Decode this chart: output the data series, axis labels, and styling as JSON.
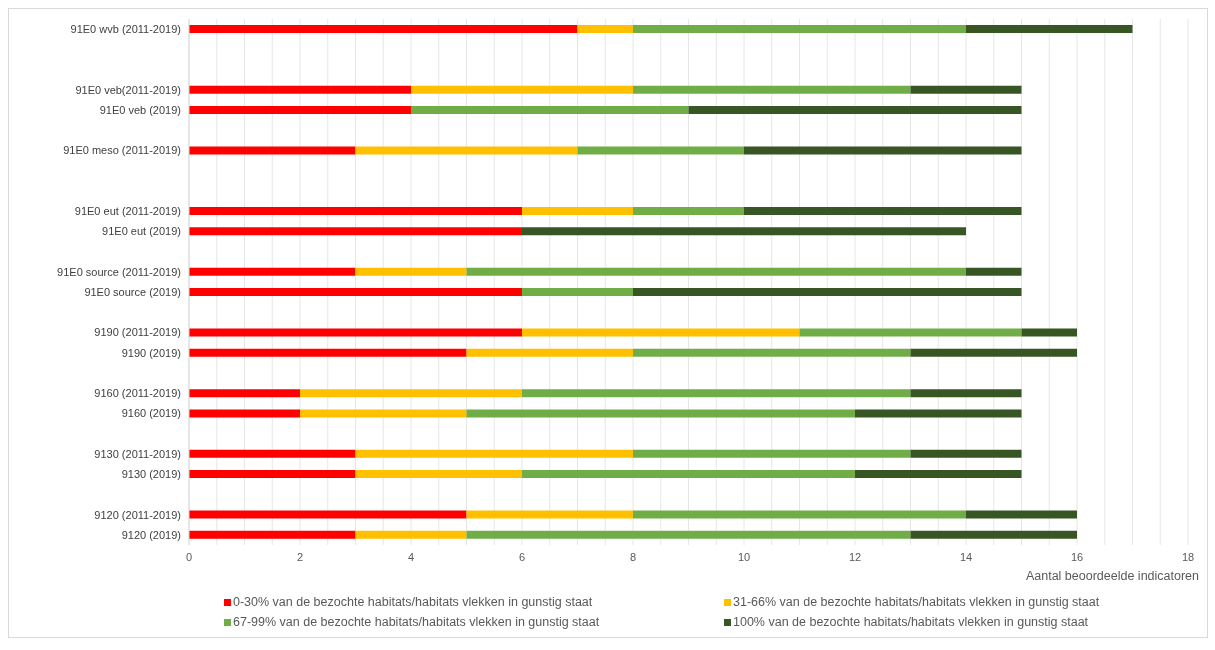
{
  "chart_data": {
    "type": "bar",
    "orientation": "horizontal",
    "stacked": true,
    "xlabel": "Aantal beoordeelde indicatoren",
    "categories": [
      "91E0 wvb (2011-2019)",
      null,
      null,
      "91E0 veb(2011-2019)",
      "91E0 veb (2019)",
      null,
      "91E0 meso (2011-2019)",
      null,
      null,
      "91E0 eut (2011-2019)",
      "91E0 eut (2019)",
      null,
      "91E0 source (2011-2019)",
      "91E0 source (2019)",
      null,
      "9190 (2011-2019)",
      "9190 (2019)",
      null,
      "9160 (2011-2019)",
      "9160 (2019)",
      null,
      "9130 (2011-2019)",
      "9130 (2019)",
      null,
      "9120 (2011-2019)",
      "9120 (2019)"
    ],
    "series": [
      {
        "name": "0-30% van de bezochte habitats/habitats vlekken in gunstig staat",
        "color": "#ff0000",
        "values": [
          7,
          null,
          null,
          4,
          4,
          null,
          3,
          null,
          null,
          6,
          6,
          null,
          3,
          6,
          null,
          6,
          5,
          null,
          2,
          2,
          null,
          3,
          3,
          null,
          5,
          3
        ]
      },
      {
        "name": "31-66% van de bezochte habitats/habitats vlekken in gunstig staat",
        "color": "#ffc000",
        "values": [
          1,
          null,
          null,
          4,
          0,
          null,
          4,
          null,
          null,
          2,
          0,
          null,
          2,
          0,
          null,
          5,
          3,
          null,
          4,
          3,
          null,
          5,
          3,
          null,
          3,
          2
        ]
      },
      {
        "name": "67-99% van de bezochte habitats/habitats vlekken in gunstig staat",
        "color": "#70ad47",
        "values": [
          6,
          null,
          null,
          5,
          5,
          null,
          3,
          null,
          null,
          2,
          0,
          null,
          9,
          2,
          null,
          4,
          5,
          null,
          7,
          7,
          null,
          5,
          6,
          null,
          6,
          8
        ]
      },
      {
        "name": "100% van de bezochte habitats/habitats vlekken in gunstig staat",
        "color": "#375623",
        "values": [
          3,
          null,
          null,
          2,
          6,
          null,
          5,
          null,
          null,
          5,
          8,
          null,
          1,
          7,
          null,
          1,
          3,
          null,
          2,
          3,
          null,
          2,
          3,
          null,
          2,
          3
        ]
      }
    ],
    "xlim": [
      0,
      18
    ],
    "xticks": [
      0,
      {
        "value": 0.5,
        "label": null
      },
      {
        "value": 1,
        "label": null
      },
      {
        "value": 1.5,
        "label": null
      },
      2,
      {
        "value": 2.5,
        "label": null
      },
      {
        "value": 3,
        "label": null
      },
      {
        "value": 3.5,
        "label": null
      },
      4,
      {
        "value": 4.5,
        "label": null
      },
      {
        "value": 5,
        "label": null
      },
      {
        "value": 5.5,
        "label": null
      },
      6,
      {
        "value": 6.5,
        "label": null
      },
      {
        "value": 7,
        "label": null
      },
      {
        "value": 7.5,
        "label": null
      },
      8,
      {
        "value": 8.5,
        "label": null
      },
      {
        "value": 9,
        "label": null
      },
      {
        "value": 9.5,
        "label": null
      },
      10,
      {
        "value": 10.5,
        "label": null
      },
      {
        "value": 11,
        "label": null
      },
      {
        "value": 11.5,
        "label": null
      },
      12,
      {
        "value": 12.5,
        "label": null
      },
      {
        "value": 13,
        "label": null
      },
      {
        "value": 13.5,
        "label": null
      },
      14,
      {
        "value": 14.5,
        "label": null
      },
      {
        "value": 15,
        "label": null
      },
      {
        "value": 15.5,
        "label": null
      },
      16,
      {
        "value": 16.5,
        "label": null
      },
      {
        "value": 17,
        "label": null
      },
      {
        "value": 17.5,
        "label": null
      },
      18
    ],
    "grid": "x",
    "legend": "bottom"
  }
}
